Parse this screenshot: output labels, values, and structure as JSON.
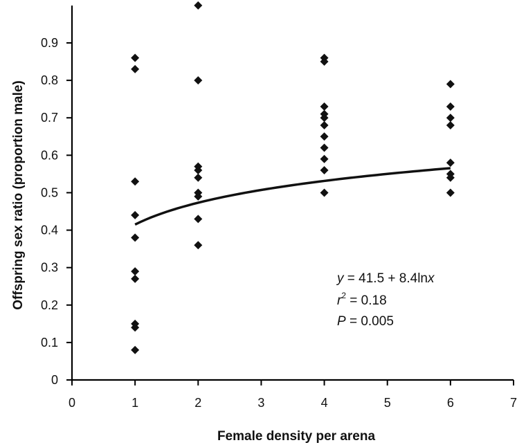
{
  "chart_data": {
    "type": "scatter",
    "title": "",
    "xlabel": "Female density per arena",
    "ylabel": "Offspring sex ratio (proportion male)",
    "xlim": [
      0,
      7
    ],
    "ylim": [
      0,
      1.0
    ],
    "x_ticks": [
      "0",
      "1",
      "2",
      "3",
      "4",
      "5",
      "6",
      "7"
    ],
    "y_ticks": [
      "0",
      "0.1",
      "0.2",
      "0.3",
      "0.4",
      "0.5",
      "0.6",
      "0.7",
      "0.8",
      "0.9"
    ],
    "grid": false,
    "points": [
      {
        "x": 1,
        "y": 0.86
      },
      {
        "x": 1,
        "y": 0.83
      },
      {
        "x": 1,
        "y": 0.53
      },
      {
        "x": 1,
        "y": 0.44
      },
      {
        "x": 1,
        "y": 0.38
      },
      {
        "x": 1,
        "y": 0.29
      },
      {
        "x": 1,
        "y": 0.27
      },
      {
        "x": 1,
        "y": 0.15
      },
      {
        "x": 1,
        "y": 0.14
      },
      {
        "x": 1,
        "y": 0.08
      },
      {
        "x": 2,
        "y": 1.0
      },
      {
        "x": 2,
        "y": 0.8
      },
      {
        "x": 2,
        "y": 0.57
      },
      {
        "x": 2,
        "y": 0.56
      },
      {
        "x": 2,
        "y": 0.54
      },
      {
        "x": 2,
        "y": 0.5
      },
      {
        "x": 2,
        "y": 0.49
      },
      {
        "x": 2,
        "y": 0.43
      },
      {
        "x": 2,
        "y": 0.36
      },
      {
        "x": 4,
        "y": 0.86
      },
      {
        "x": 4,
        "y": 0.85
      },
      {
        "x": 4,
        "y": 0.73
      },
      {
        "x": 4,
        "y": 0.71
      },
      {
        "x": 4,
        "y": 0.7
      },
      {
        "x": 4,
        "y": 0.68
      },
      {
        "x": 4,
        "y": 0.65
      },
      {
        "x": 4,
        "y": 0.62
      },
      {
        "x": 4,
        "y": 0.59
      },
      {
        "x": 4,
        "y": 0.56
      },
      {
        "x": 4,
        "y": 0.5
      },
      {
        "x": 6,
        "y": 0.79
      },
      {
        "x": 6,
        "y": 0.73
      },
      {
        "x": 6,
        "y": 0.7
      },
      {
        "x": 6,
        "y": 0.68
      },
      {
        "x": 6,
        "y": 0.58
      },
      {
        "x": 6,
        "y": 0.55
      },
      {
        "x": 6,
        "y": 0.54
      },
      {
        "x": 6,
        "y": 0.5
      }
    ],
    "fit": {
      "intercept": 41.5,
      "slope": 8.4,
      "x_range": [
        1,
        6
      ],
      "equation_lhs": "y",
      "equation_rhs": " = 41.5 + 8.4ln",
      "equation_var": "x",
      "r2_label": "r",
      "r2_exp": "2",
      "r2_value": " = 0.18",
      "p_label": "P",
      "p_value": " = 0.005"
    },
    "colors": {
      "points": "#111111",
      "fit_line": "#111111"
    }
  }
}
